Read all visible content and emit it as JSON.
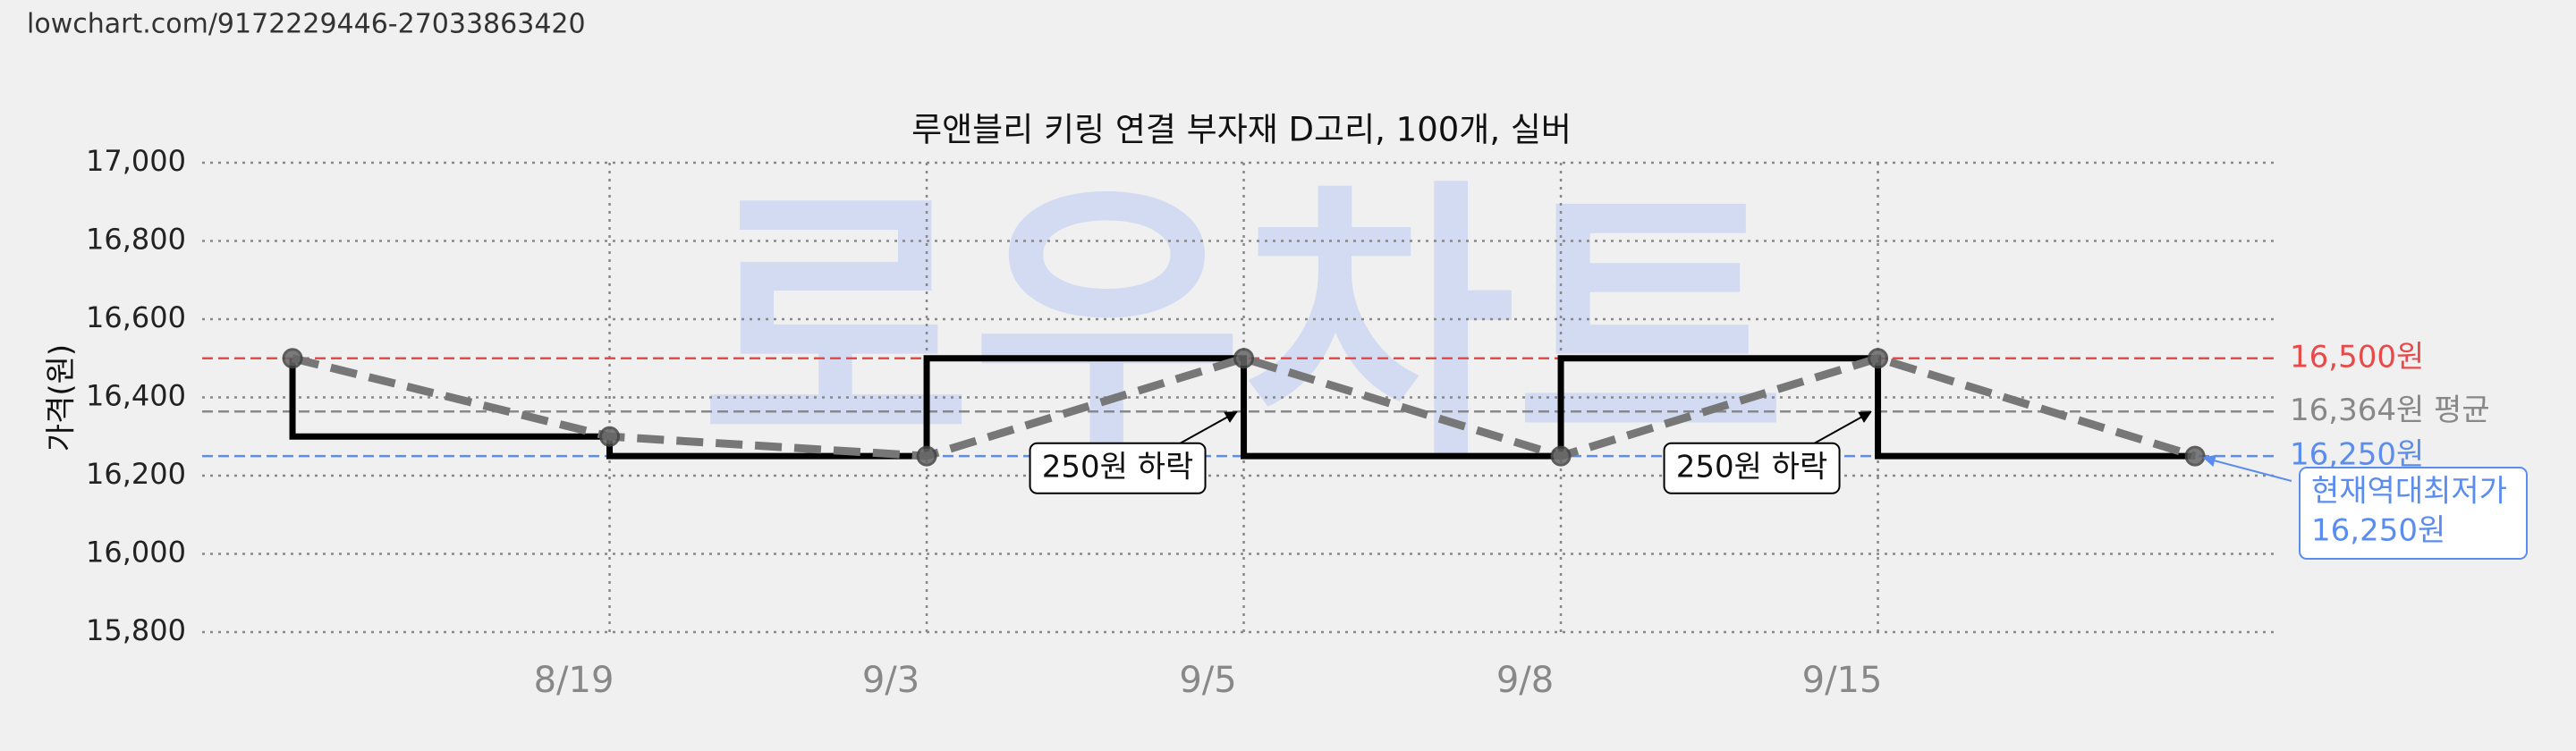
{
  "url": "lowchart.com/9172229446-27033863420",
  "chart_data": {
    "type": "line",
    "title": "루앤블리 키링 연결 부자재 D고리, 100개, 실버",
    "ylabel": "가격(원)",
    "watermark": "로우차트",
    "categories": [
      null,
      "8/19",
      "9/3",
      "9/5",
      "9/8",
      "9/15",
      null
    ],
    "series": [
      {
        "color": "#000000",
        "trend_color": "#777777",
        "values": [
          16500,
          16300,
          16250,
          16500,
          16250,
          16500,
          16250
        ]
      }
    ],
    "ylim": [
      15800,
      17000
    ],
    "yticks": [
      {
        "value": 15800,
        "label": "15,800"
      },
      {
        "value": 16000,
        "label": "16,000"
      },
      {
        "value": 16200,
        "label": "16,200"
      },
      {
        "value": 16400,
        "label": "16,400"
      },
      {
        "value": 16600,
        "label": "16,600"
      },
      {
        "value": 16800,
        "label": "16,800"
      },
      {
        "value": 17000,
        "label": "17,000"
      }
    ],
    "grid": true,
    "reference_lines": [
      {
        "value": 16500,
        "label": "16,500원",
        "color": "#e84a4a"
      },
      {
        "value": 16364,
        "label": "16,364원 평균",
        "color": "#888888"
      },
      {
        "value": 16250,
        "label": "16,250원",
        "color": "#5b8def"
      }
    ],
    "annotations": [
      {
        "text": "250원 하락",
        "index": 3
      },
      {
        "text": "250원 하락",
        "index": 5
      }
    ],
    "lowest_label": [
      "현재역대최저가",
      "16,250원"
    ]
  }
}
